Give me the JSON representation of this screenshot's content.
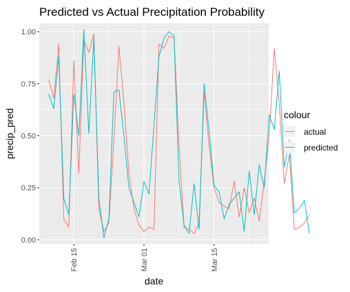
{
  "chart_data": {
    "type": "line",
    "title": "Predicted vs Actual Precipitation Probability",
    "xlabel": "date",
    "ylabel": "precip_pred",
    "x_start": "2014-02-10",
    "x_end": "2014-03-24",
    "x_ticks": [
      {
        "date": "2014-02-15",
        "label": "Feb 15"
      },
      {
        "date": "2014-03-01",
        "label": "Mar 01"
      },
      {
        "date": "2014-03-15",
        "label": "Mar 15"
      }
    ],
    "ylim": [
      -0.02,
      1.04
    ],
    "y_ticks": [
      0.0,
      0.25,
      0.5,
      0.75,
      1.0
    ],
    "y_tick_labels": [
      "0.00",
      "0.25",
      "0.50",
      "0.75",
      "1.00"
    ],
    "grid": true,
    "legend": {
      "title": "colour",
      "placement": "right"
    },
    "series": [
      {
        "name": "actual",
        "color": "#F8766D",
        "values": [
          0.77,
          0.68,
          0.94,
          0.1,
          0.06,
          0.86,
          0.32,
          0.96,
          0.9,
          0.99,
          0.15,
          0.04,
          0.08,
          0.48,
          0.93,
          0.66,
          0.32,
          0.15,
          0.07,
          0.04,
          0.06,
          0.05,
          0.94,
          0.92,
          0.98,
          0.97,
          0.45,
          0.06,
          0.05,
          0.03,
          0.08,
          0.71,
          0.45,
          0.25,
          0.18,
          0.16,
          0.15,
          0.28,
          0.11,
          0.25,
          0.13,
          0.2,
          0.09,
          0.28,
          0.5,
          0.92,
          0.65,
          0.27,
          0.41,
          0.05,
          0.06,
          0.08,
          0.12
        ]
      },
      {
        "name": "predicted",
        "color": "#00BFC4",
        "values": [
          0.7,
          0.63,
          0.88,
          0.2,
          0.12,
          0.7,
          0.5,
          1.01,
          0.51,
          0.97,
          0.2,
          0.01,
          0.1,
          0.71,
          0.72,
          0.5,
          0.25,
          0.18,
          0.11,
          0.28,
          0.22,
          0.55,
          0.88,
          0.97,
          1.0,
          0.98,
          0.28,
          0.07,
          0.03,
          0.27,
          0.05,
          0.75,
          0.52,
          0.26,
          0.23,
          0.1,
          0.17,
          0.2,
          0.23,
          0.04,
          0.33,
          0.12,
          0.36,
          0.25,
          0.6,
          0.53,
          0.81,
          0.35,
          0.48,
          0.13,
          0.15,
          0.19,
          0.03
        ]
      }
    ]
  }
}
